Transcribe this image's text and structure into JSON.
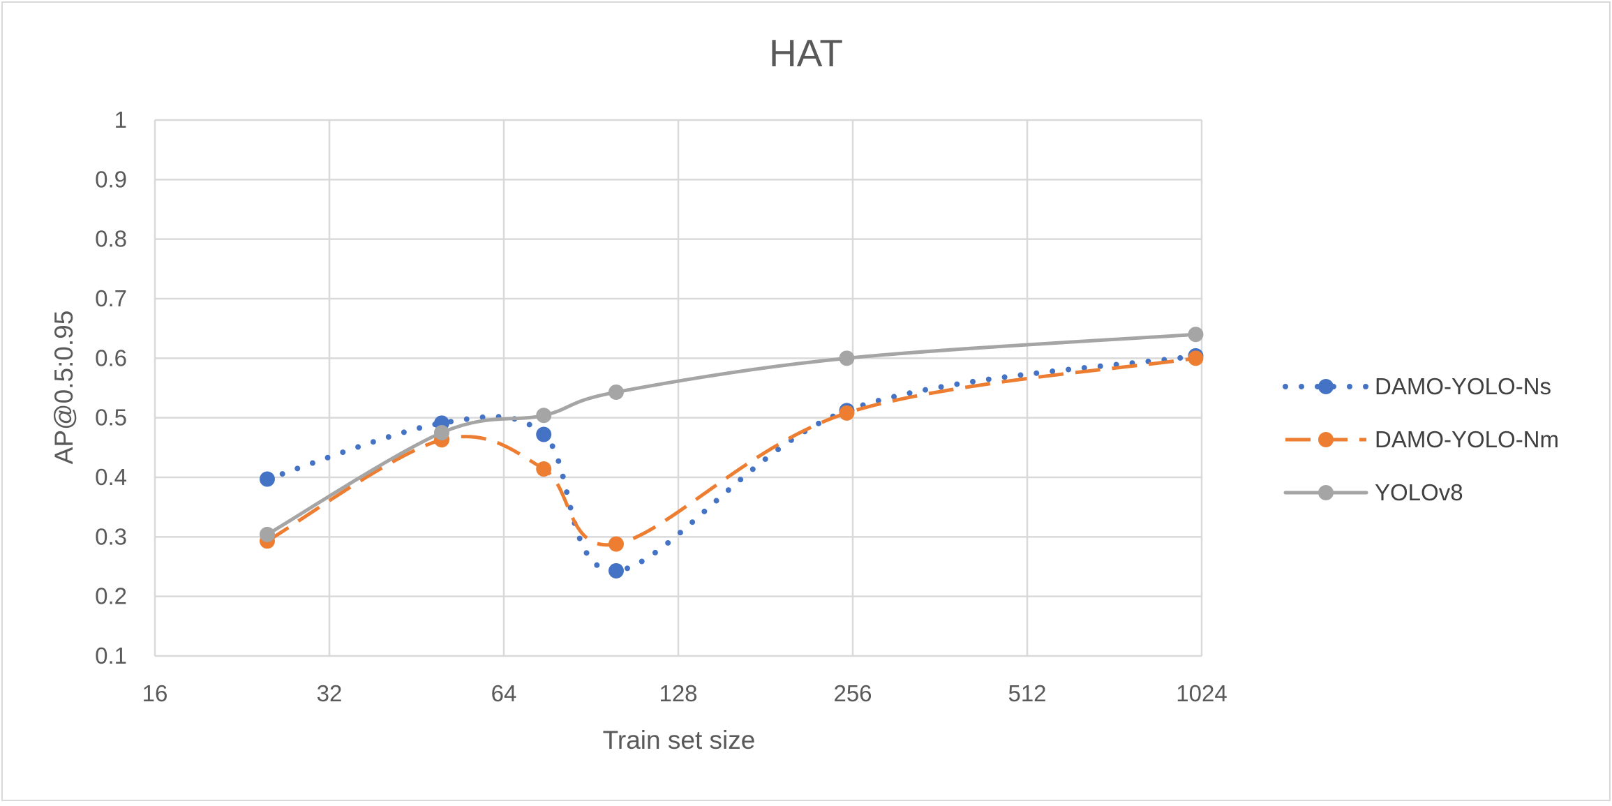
{
  "chart_data": {
    "type": "line",
    "title": "HAT",
    "xlabel": "Train set size",
    "ylabel": "AP@0.5:0.95",
    "x_scale": "log2",
    "xlim": [
      16,
      1024
    ],
    "ylim": [
      0.1,
      1
    ],
    "x_ticks": [
      "16",
      "32",
      "64",
      "128",
      "256",
      "512",
      "1024"
    ],
    "y_ticks": [
      "0.1",
      "0.2",
      "0.3",
      "0.4",
      "0.5",
      "0.6",
      "0.7",
      "0.8",
      "0.9",
      "1"
    ],
    "grid": true,
    "legend_position": "right",
    "x": [
      25,
      50,
      75,
      100,
      250,
      1000
    ],
    "series": [
      {
        "name": "DAMO-YOLO-Ns",
        "color": "#4472c4",
        "line_style": "dotted",
        "values": [
          0.397,
          0.491,
          0.472,
          0.243,
          0.512,
          0.604
        ]
      },
      {
        "name": "DAMO-YOLO-Nm",
        "color": "#ed7d31",
        "line_style": "dashed",
        "values": [
          0.293,
          0.463,
          0.414,
          0.288,
          0.508,
          0.6
        ]
      },
      {
        "name": "YOLOv8",
        "color": "#a5a5a5",
        "line_style": "solid",
        "values": [
          0.304,
          0.475,
          0.504,
          0.543,
          0.6,
          0.64
        ]
      }
    ]
  }
}
